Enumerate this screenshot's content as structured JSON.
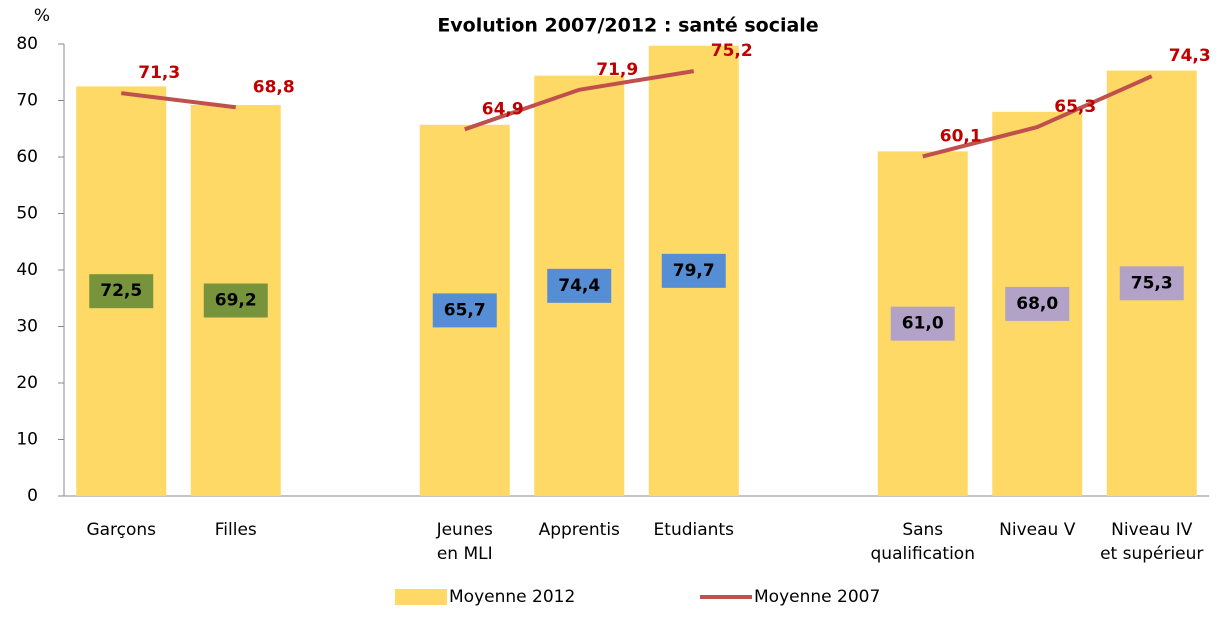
{
  "chart_data": {
    "type": "bar",
    "title": "Evolution 2007/2012 : santé sociale",
    "y_label": "%",
    "categories": [
      "Garçons",
      "Filles",
      null,
      "Jeunes\nen MLI",
      "Apprentis",
      "Etudiants",
      null,
      "Sans\nqualification",
      "Niveau V",
      "Niveau IV\net supérieur"
    ],
    "series": [
      {
        "name": "Moyenne 2012",
        "type": "bar",
        "color": "#ffd966",
        "values": [
          72.5,
          69.2,
          null,
          65.7,
          74.4,
          79.7,
          null,
          61.0,
          68.0,
          75.3
        ],
        "value_labels": [
          "72,5",
          "69,2",
          null,
          "65,7",
          "74,4",
          "79,7",
          null,
          "61,0",
          "68,0",
          "75,3"
        ],
        "label_box_colors": [
          "#77933c",
          "#77933c",
          null,
          "#558ed5",
          "#558ed5",
          "#558ed5",
          null,
          "#b3a2c7",
          "#b3a2c7",
          "#b3a2c7"
        ]
      },
      {
        "name": "Moyenne 2007",
        "type": "line",
        "color": "#c0504d",
        "label_color": "#c00000",
        "values": [
          71.3,
          68.8,
          null,
          64.9,
          71.9,
          75.2,
          null,
          60.1,
          65.3,
          74.3
        ],
        "value_labels": [
          "71,3",
          "68,8",
          null,
          "64,9",
          "71,9",
          "75,2",
          null,
          "60,1",
          "65,3",
          "74,3"
        ]
      }
    ],
    "ylim": [
      0,
      80
    ],
    "yticks": [
      0,
      10,
      20,
      30,
      40,
      50,
      60,
      70,
      80
    ],
    "grid": false,
    "legend": "bottom"
  }
}
